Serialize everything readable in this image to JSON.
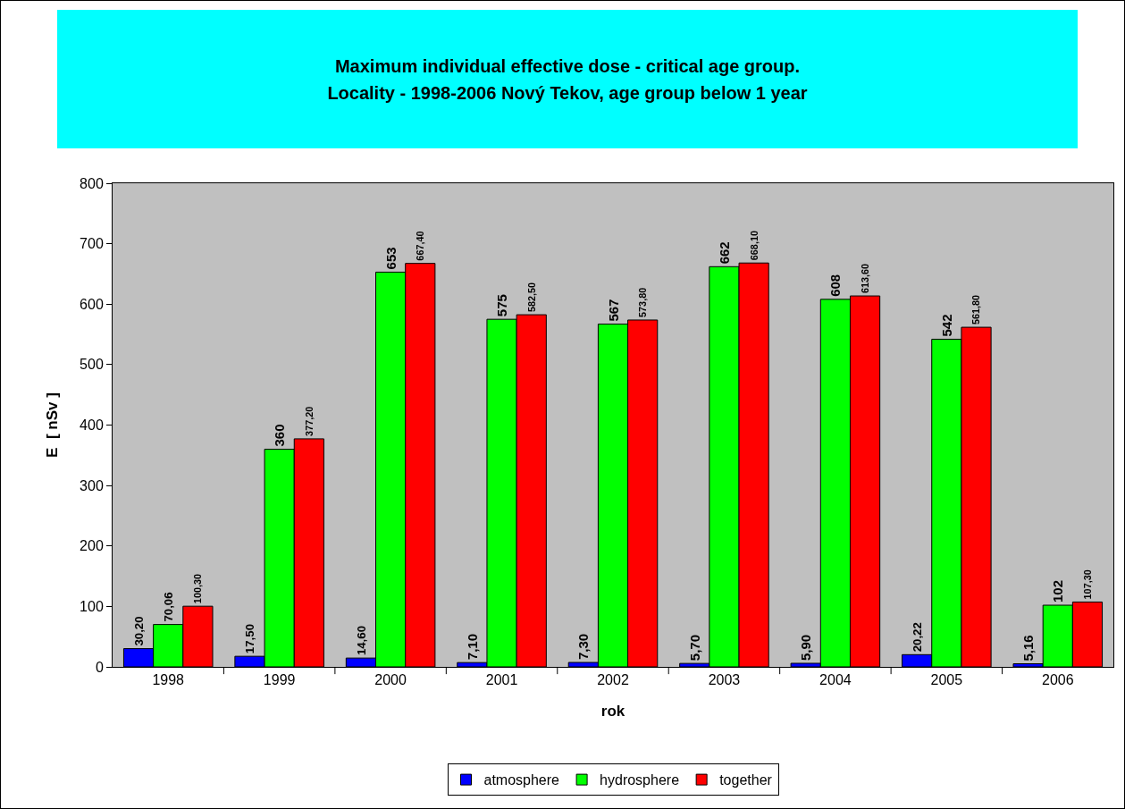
{
  "chart_data": {
    "type": "bar",
    "title": "Maximum individual effective dose - critical age group.\nLocality - 1998-2006 Nový Tekov, age group below 1 year",
    "xlabel": "rok",
    "ylabel": "E  [ nSv ]",
    "categories": [
      "1998",
      "1999",
      "2000",
      "2001",
      "2002",
      "2003",
      "2004",
      "2005",
      "2006"
    ],
    "series": [
      {
        "name": "atmosphere",
        "color": "#0000ff",
        "values": [
          30.2,
          17.5,
          14.6,
          7.1,
          7.3,
          5.7,
          5.9,
          20.22,
          5.16
        ],
        "value_labels": [
          "30,20",
          "17,50",
          "14,60",
          "7,10",
          "7,30",
          "5,70",
          "5,90",
          "20,22",
          "5,16"
        ]
      },
      {
        "name": "hydrosphere",
        "color": "#00ff00",
        "values": [
          70.06,
          360,
          653,
          575,
          567,
          662,
          608,
          542,
          102
        ],
        "value_labels": [
          "70,06",
          "360",
          "653",
          "575",
          "567",
          "662",
          "608",
          "542",
          "102"
        ]
      },
      {
        "name": "together",
        "color": "#ff0000",
        "values": [
          100.3,
          377.2,
          667.4,
          582.5,
          573.8,
          668.1,
          613.6,
          561.8,
          107.3
        ],
        "value_labels": [
          "100,30",
          "377,20",
          "667,40",
          "582,50",
          "573,80",
          "668,10",
          "613,60",
          "561,80",
          "107,30"
        ]
      }
    ],
    "ylim": [
      0,
      800
    ],
    "yticks": [
      0,
      100,
      200,
      300,
      400,
      500,
      600,
      700,
      800
    ],
    "grid": false,
    "legend": "bottom"
  }
}
